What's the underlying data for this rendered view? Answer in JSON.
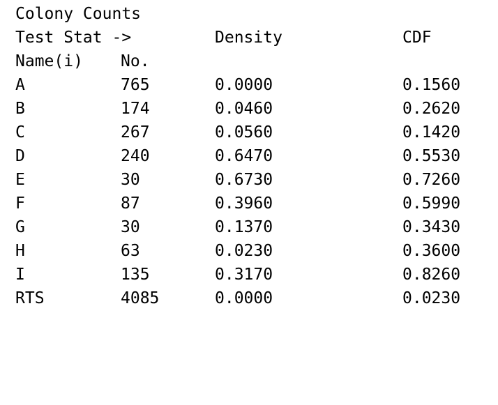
{
  "title": "Colony Counts",
  "header_row1": {
    "label": "Test Stat ->",
    "density": "Density",
    "cdf": "CDF"
  },
  "header_row2": {
    "name": "Name(i)",
    "no": "No."
  },
  "rows": [
    {
      "name": "A",
      "no": "765",
      "density": "0.0000",
      "cdf": "0.1560"
    },
    {
      "name": "B",
      "no": "174",
      "density": "0.0460",
      "cdf": "0.2620"
    },
    {
      "name": "C",
      "no": "267",
      "density": "0.0560",
      "cdf": "0.1420"
    },
    {
      "name": "D",
      "no": "240",
      "density": "0.6470",
      "cdf": "0.5530"
    },
    {
      "name": "E",
      "no": "30",
      "density": "0.6730",
      "cdf": "0.7260"
    },
    {
      "name": "F",
      "no": "87",
      "density": "0.3960",
      "cdf": "0.5990"
    },
    {
      "name": "G",
      "no": "30",
      "density": "0.1370",
      "cdf": "0.3430"
    },
    {
      "name": "H",
      "no": "63",
      "density": "0.0230",
      "cdf": "0.3600"
    },
    {
      "name": "I",
      "no": "135",
      "density": "0.3170",
      "cdf": "0.8260"
    },
    {
      "name": "RTS",
      "no": "4085",
      "density": "0.0000",
      "cdf": "0.0230"
    }
  ]
}
